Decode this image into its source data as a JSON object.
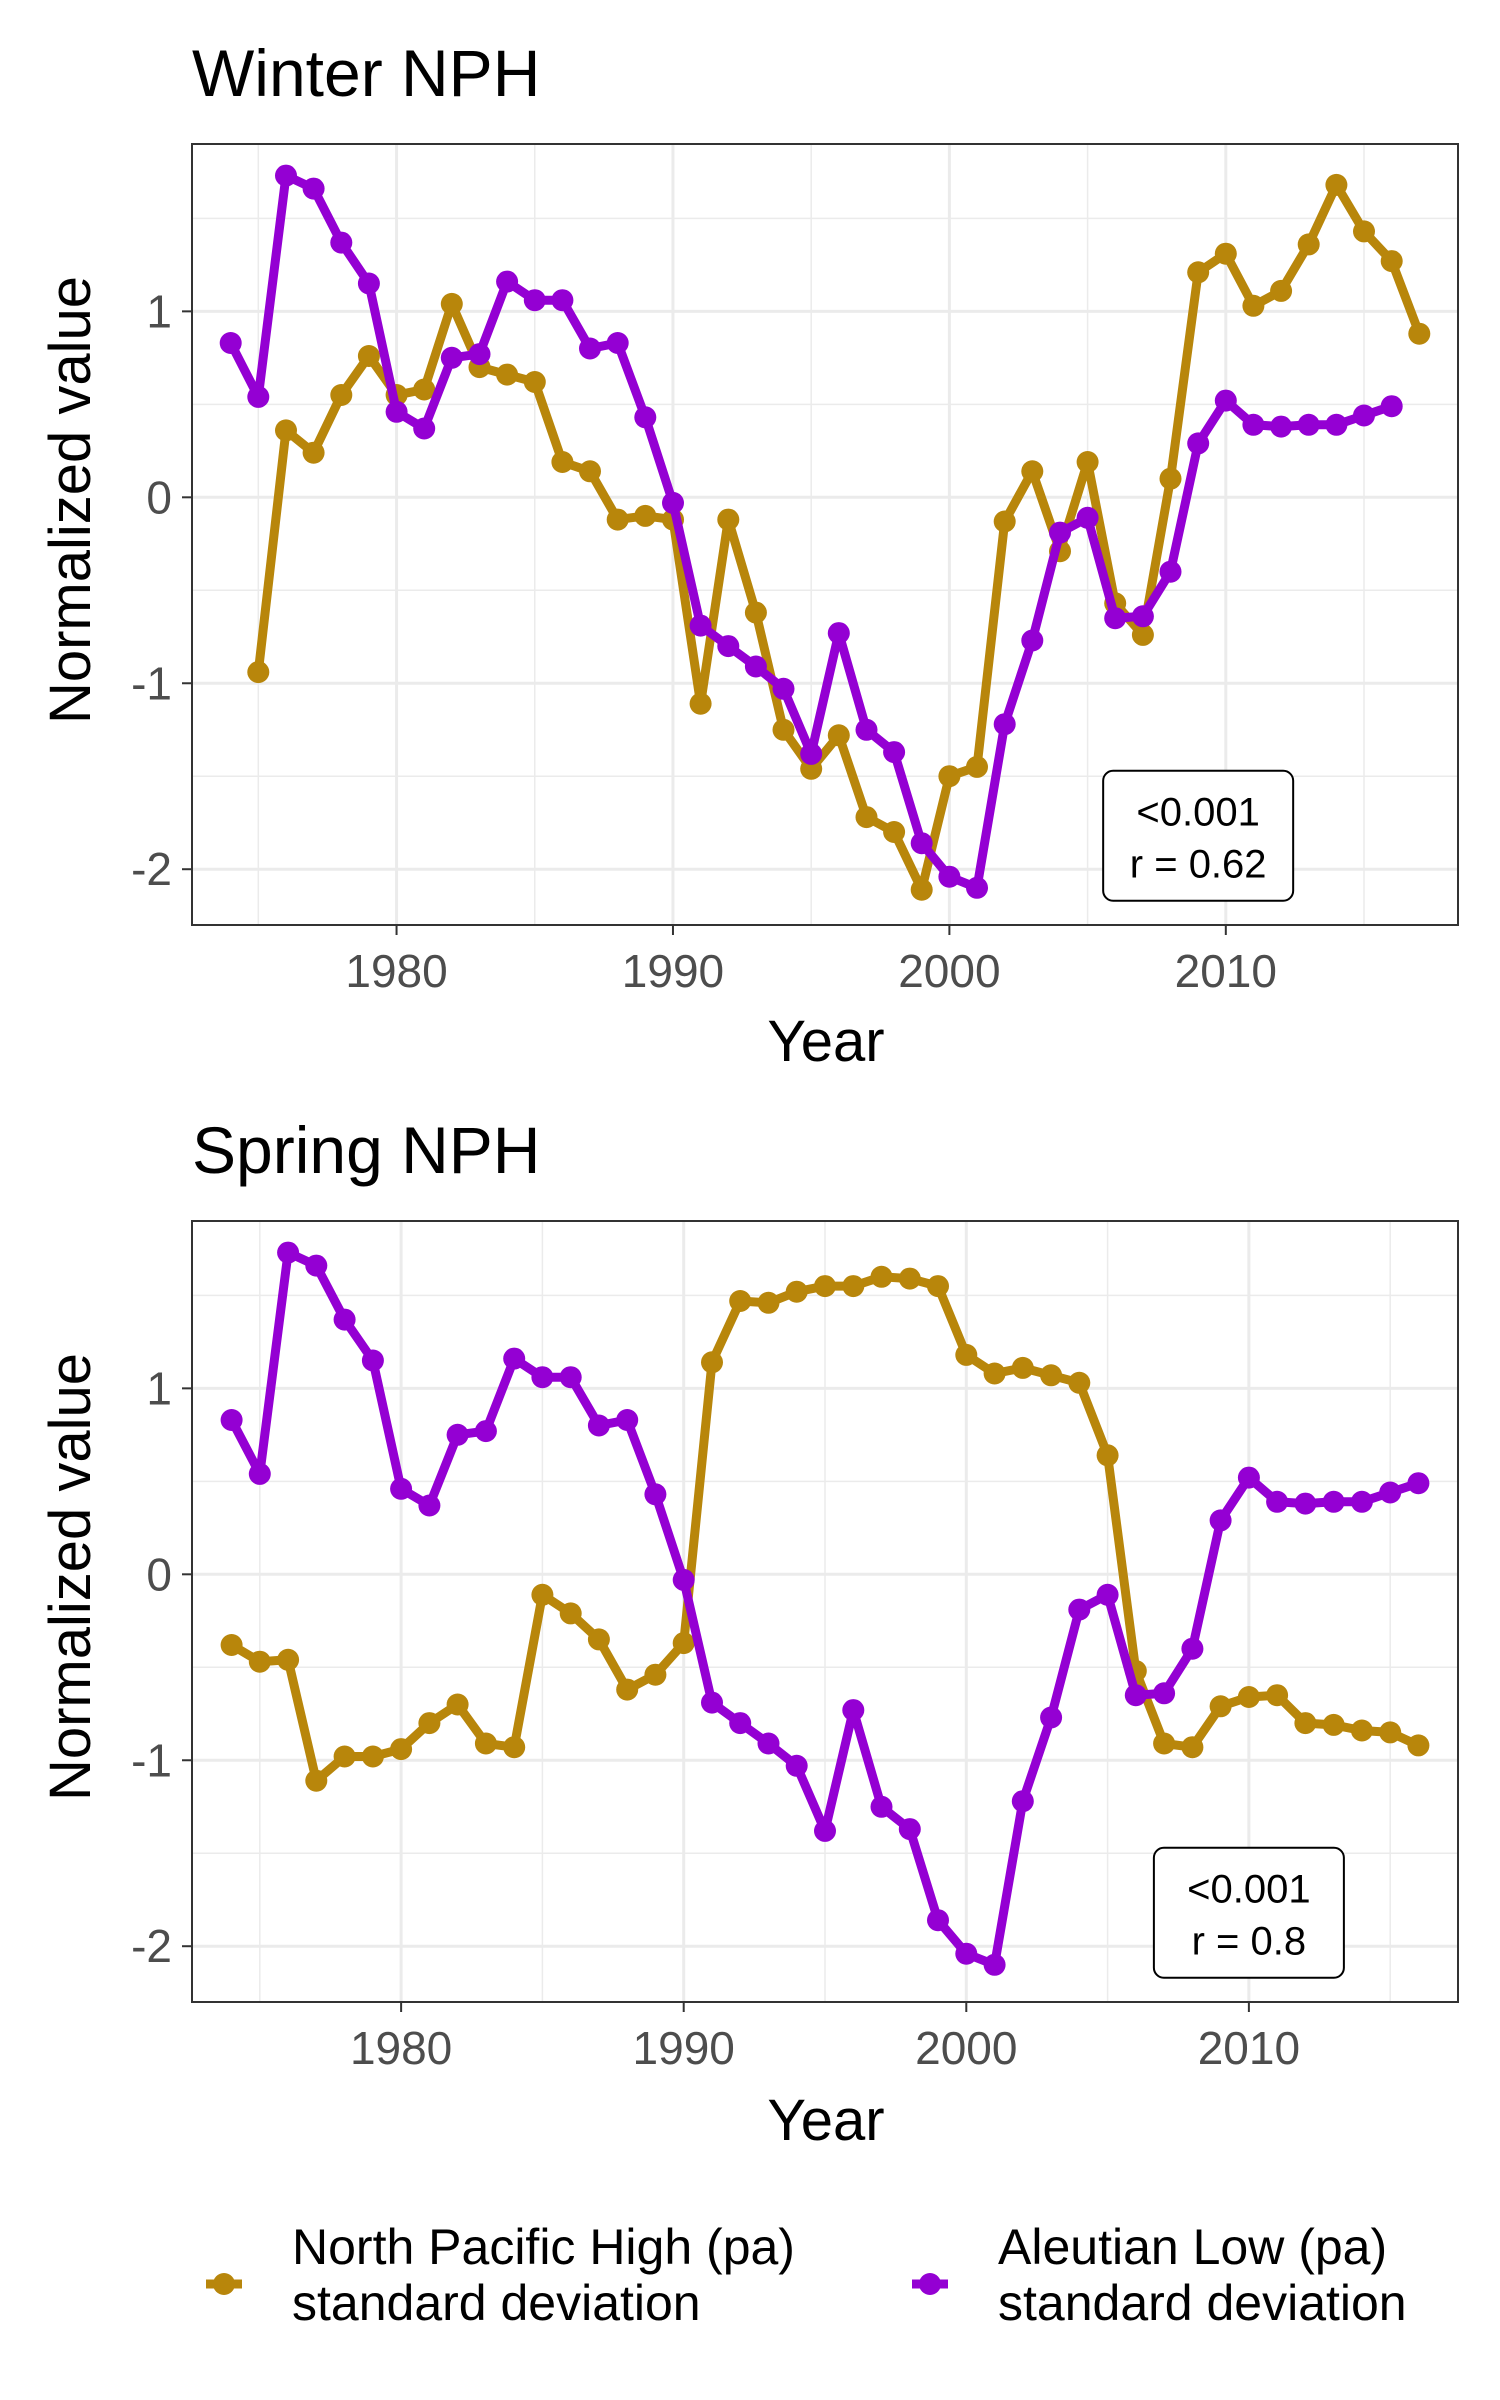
{
  "colors": {
    "nph": "#B8860B",
    "al": "#9400D3",
    "grid": "#EBEBEB",
    "panel_border": "#333333",
    "tick_text": "#4D4D4D",
    "text": "#000000"
  },
  "legend": {
    "items": [
      {
        "key": "nph",
        "line1": "North Pacific High (pa)",
        "line2": "standard deviation"
      },
      {
        "key": "al",
        "line1": "Aleutian Low (pa)",
        "line2": "standard deviation"
      }
    ]
  },
  "chart_data": [
    {
      "type": "line",
      "title": "Winter NPH",
      "xlabel": "Year",
      "ylabel": "Normalized value",
      "xlim": [
        1972.6,
        2018.4
      ],
      "ylim": [
        -2.3,
        1.9
      ],
      "xticks": [
        1980,
        1990,
        2000,
        2010
      ],
      "xtick_labels": [
        "1980",
        "1990",
        "2000",
        "2010"
      ],
      "yticks": [
        -2,
        -1,
        0,
        1
      ],
      "ytick_labels": [
        "-2",
        "-1",
        "0",
        "1"
      ],
      "grid": true,
      "annotation": {
        "line1": "<0.001",
        "line2": "r = 0.62",
        "x": 2009,
        "y": -1.82
      },
      "series": [
        {
          "key": "nph",
          "x": [
            1975,
            1976,
            1977,
            1978,
            1979,
            1980,
            1981,
            1982,
            1983,
            1984,
            1985,
            1986,
            1987,
            1988,
            1989,
            1990,
            1991,
            1992,
            1993,
            1994,
            1995,
            1996,
            1997,
            1998,
            1999,
            2000,
            2001,
            2002,
            2003,
            2004,
            2005,
            2006,
            2007,
            2008,
            2009,
            2010,
            2011,
            2012,
            2013,
            2014,
            2015,
            2016,
            2017
          ],
          "y": [
            -0.94,
            0.36,
            0.24,
            0.55,
            0.76,
            0.55,
            0.58,
            1.04,
            0.7,
            0.66,
            0.62,
            0.19,
            0.14,
            -0.12,
            -0.1,
            -0.12,
            -1.11,
            -0.12,
            -0.62,
            -1.25,
            -1.46,
            -1.28,
            -1.72,
            -1.8,
            -2.11,
            -1.5,
            -1.45,
            -0.13,
            0.14,
            -0.29,
            0.19,
            -0.57,
            -0.74,
            0.1,
            1.21,
            1.31,
            1.03,
            1.11,
            1.36,
            1.68,
            1.43,
            1.27,
            0.88
          ]
        },
        {
          "key": "al",
          "x": [
            1974,
            1975,
            1976,
            1977,
            1978,
            1979,
            1980,
            1981,
            1982,
            1983,
            1984,
            1985,
            1986,
            1987,
            1988,
            1989,
            1990,
            1991,
            1992,
            1993,
            1994,
            1995,
            1996,
            1997,
            1998,
            1999,
            2000,
            2001,
            2002,
            2003,
            2004,
            2005,
            2006,
            2007,
            2008,
            2009,
            2010,
            2011,
            2012,
            2013,
            2014,
            2015,
            2016
          ],
          "y": [
            0.83,
            0.54,
            1.73,
            1.66,
            1.37,
            1.15,
            0.46,
            0.37,
            0.75,
            0.77,
            1.16,
            1.06,
            1.06,
            0.8,
            0.83,
            0.43,
            -0.03,
            -0.69,
            -0.8,
            -0.91,
            -1.03,
            -1.38,
            -0.73,
            -1.25,
            -1.37,
            -1.86,
            -2.04,
            -2.1,
            -1.22,
            -0.77,
            -0.19,
            -0.11,
            -0.65,
            -0.64,
            -0.4,
            0.29,
            0.52,
            0.39,
            0.38,
            0.39,
            0.39,
            0.44,
            0.49
          ]
        }
      ]
    },
    {
      "type": "line",
      "title": "Spring NPH",
      "xlabel": "Year",
      "ylabel": "Normalized value",
      "xlim": [
        1972.6,
        2017.4
      ],
      "ylim": [
        -2.3,
        1.9
      ],
      "xticks": [
        1980,
        1990,
        2000,
        2010
      ],
      "xtick_labels": [
        "1980",
        "1990",
        "2000",
        "2010"
      ],
      "yticks": [
        -2,
        -1,
        0,
        1
      ],
      "ytick_labels": [
        "-2",
        "-1",
        "0",
        "1"
      ],
      "grid": true,
      "annotation": {
        "line1": "<0.001",
        "line2": "r = 0.8",
        "x": 2010,
        "y": -1.82
      },
      "series": [
        {
          "key": "nph",
          "x": [
            1974,
            1975,
            1976,
            1977,
            1978,
            1979,
            1980,
            1981,
            1982,
            1983,
            1984,
            1985,
            1986,
            1987,
            1988,
            1989,
            1990,
            1991,
            1992,
            1993,
            1994,
            1995,
            1996,
            1997,
            1998,
            1999,
            2000,
            2001,
            2002,
            2003,
            2004,
            2005,
            2006,
            2007,
            2008,
            2009,
            2010,
            2011,
            2012,
            2013,
            2014,
            2015,
            2016
          ],
          "y": [
            -0.38,
            -0.47,
            -0.46,
            -1.11,
            -0.98,
            -0.98,
            -0.94,
            -0.8,
            -0.7,
            -0.91,
            -0.93,
            -0.11,
            -0.21,
            -0.35,
            -0.62,
            -0.54,
            -0.37,
            1.14,
            1.47,
            1.46,
            1.52,
            1.55,
            1.55,
            1.6,
            1.59,
            1.55,
            1.18,
            1.08,
            1.11,
            1.07,
            1.03,
            0.64,
            -0.52,
            -0.91,
            -0.93,
            -0.71,
            -0.66,
            -0.65,
            -0.8,
            -0.81,
            -0.84,
            -0.85,
            -0.92
          ]
        },
        {
          "key": "al",
          "x": [
            1974,
            1975,
            1976,
            1977,
            1978,
            1979,
            1980,
            1981,
            1982,
            1983,
            1984,
            1985,
            1986,
            1987,
            1988,
            1989,
            1990,
            1991,
            1992,
            1993,
            1994,
            1995,
            1996,
            1997,
            1998,
            1999,
            2000,
            2001,
            2002,
            2003,
            2004,
            2005,
            2006,
            2007,
            2008,
            2009,
            2010,
            2011,
            2012,
            2013,
            2014,
            2015,
            2016
          ],
          "y": [
            0.83,
            0.54,
            1.73,
            1.66,
            1.37,
            1.15,
            0.46,
            0.37,
            0.75,
            0.77,
            1.16,
            1.06,
            1.06,
            0.8,
            0.83,
            0.43,
            -0.03,
            -0.69,
            -0.8,
            -0.91,
            -1.03,
            -1.38,
            -0.73,
            -1.25,
            -1.37,
            -1.86,
            -2.04,
            -2.1,
            -1.22,
            -0.77,
            -0.19,
            -0.11,
            -0.65,
            -0.64,
            -0.4,
            0.29,
            0.52,
            0.39,
            0.38,
            0.39,
            0.39,
            0.44,
            0.49
          ]
        }
      ]
    }
  ]
}
